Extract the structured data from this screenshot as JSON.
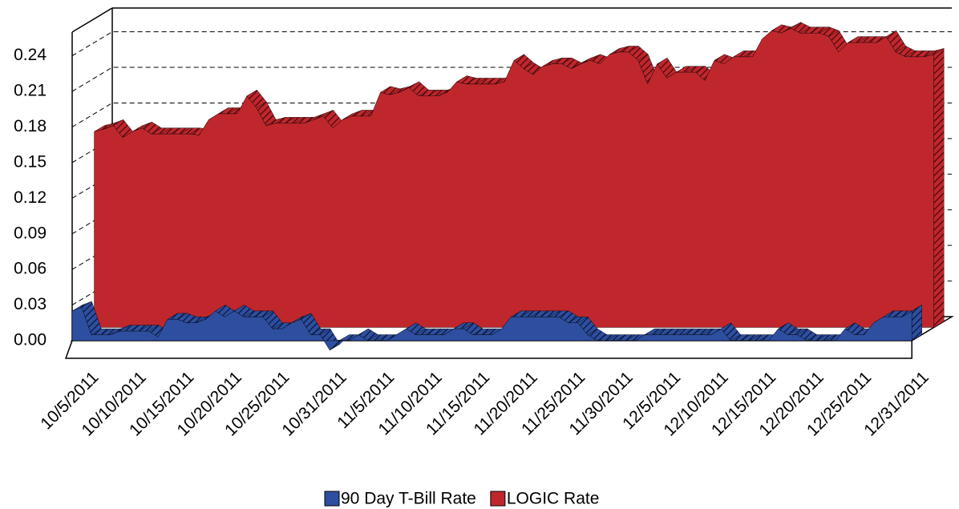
{
  "chart_data": {
    "type": "area3d",
    "categories": [
      "10/5/2011",
      null,
      null,
      null,
      null,
      "10/10/2011",
      null,
      null,
      null,
      null,
      "10/15/2011",
      null,
      null,
      null,
      null,
      "10/20/2011",
      null,
      null,
      null,
      null,
      "10/25/2011",
      null,
      null,
      null,
      null,
      null,
      "10/31/2011",
      null,
      null,
      null,
      null,
      "11/5/2011",
      null,
      null,
      null,
      null,
      "11/10/2011",
      null,
      null,
      null,
      null,
      "11/15/2011",
      null,
      null,
      null,
      null,
      "11/20/2011",
      null,
      null,
      null,
      null,
      "11/25/2011",
      null,
      null,
      null,
      null,
      "11/30/2011",
      null,
      null,
      null,
      null,
      "12/5/2011",
      null,
      null,
      null,
      null,
      "12/10/2011",
      null,
      null,
      null,
      null,
      "12/15/2011",
      null,
      null,
      null,
      null,
      "12/20/2011",
      null,
      null,
      null,
      null,
      "12/25/2011",
      null,
      null,
      null,
      null,
      null,
      "12/31/2011",
      null
    ],
    "series": [
      {
        "name": "90 Day T-Bill Rate",
        "color": "#2e4fa0",
        "values": [
          0.025,
          0.028,
          0.005,
          0.005,
          0.005,
          0.008,
          0.008,
          0.008,
          0.008,
          0.003,
          0.018,
          0.018,
          0.015,
          0.015,
          0.018,
          0.025,
          0.02,
          0.025,
          0.02,
          0.02,
          0.02,
          0.01,
          0.01,
          0.015,
          0.018,
          0.005,
          0.005,
          -0.008,
          0.0,
          0.0,
          0.005,
          0.0,
          0.0,
          0.0,
          0.005,
          0.01,
          0.005,
          0.005,
          0.005,
          0.005,
          0.01,
          0.01,
          0.005,
          0.005,
          0.005,
          0.01,
          0.02,
          0.02,
          0.02,
          0.02,
          0.02,
          0.02,
          0.015,
          0.015,
          0.005,
          0.0,
          0.0,
          0.0,
          0.0,
          0.0,
          0.005,
          0.005,
          0.005,
          0.005,
          0.005,
          0.005,
          0.005,
          0.005,
          0.01,
          0.0,
          0.0,
          0.0,
          0.0,
          0.0,
          0.01,
          0.005,
          0.005,
          0.0,
          0.0,
          0.0,
          0.0,
          0.01,
          0.005,
          0.005,
          0.015,
          0.02,
          0.02,
          0.02,
          0.025
        ]
      },
      {
        "name": "LOGIC Rate",
        "color": "#c0272d",
        "values": [
          0.165,
          0.167,
          0.17,
          0.16,
          0.165,
          0.168,
          0.163,
          0.163,
          0.163,
          0.163,
          0.163,
          0.162,
          0.175,
          0.18,
          0.18,
          0.18,
          0.195,
          0.185,
          0.17,
          0.172,
          0.172,
          0.172,
          0.172,
          0.175,
          0.178,
          0.168,
          0.175,
          0.178,
          0.178,
          0.178,
          0.198,
          0.196,
          0.198,
          0.202,
          0.195,
          0.195,
          0.195,
          0.198,
          0.207,
          0.205,
          0.205,
          0.205,
          0.205,
          0.207,
          0.225,
          0.218,
          0.213,
          0.22,
          0.222,
          0.222,
          0.218,
          0.222,
          0.225,
          0.222,
          0.23,
          0.232,
          0.232,
          0.225,
          0.205,
          0.222,
          0.21,
          0.215,
          0.215,
          0.215,
          0.208,
          0.225,
          0.222,
          0.228,
          0.228,
          0.228,
          0.243,
          0.25,
          0.248,
          0.252,
          0.248,
          0.248,
          0.248,
          0.245,
          0.232,
          0.24,
          0.24,
          0.24,
          0.24,
          0.245,
          0.232,
          0.228,
          0.228,
          0.228,
          0.23
        ]
      }
    ],
    "ylim": [
      0,
      0.26
    ],
    "yticks": [
      {
        "value": 0,
        "label": "0.00"
      },
      0.03,
      0.06,
      0.09,
      0.12,
      0.15,
      0.18,
      0.21,
      0.24
    ],
    "grid": true,
    "legend": "bottom"
  }
}
